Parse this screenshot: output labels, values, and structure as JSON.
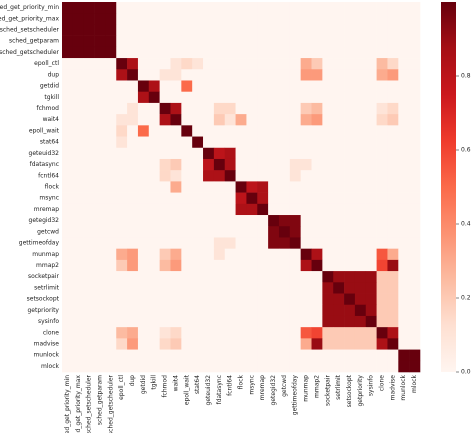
{
  "chart_data": {
    "type": "heatmap",
    "labels": [
      "sched_get_priority_min",
      "sched_get_priority_max",
      "sched_setscheduler",
      "sched_getparam",
      "sched_getscheduler",
      "epoll_ctl",
      "dup",
      "getdid",
      "tgkill",
      "fchmod",
      "wait4",
      "epoll_wait",
      "stat64",
      "geteuid32",
      "fdatasync",
      "fcntl64",
      "flock",
      "msync",
      "mremap",
      "getegid32",
      "getcwd",
      "gettimeofday",
      "munmap",
      "mmap2",
      "socketpair",
      "setrlimit",
      "setsockopt",
      "getpriority",
      "sysinfo",
      "clone",
      "madvise",
      "munlock",
      "mlock"
    ],
    "values": [
      [
        1,
        1,
        1,
        1,
        1,
        0,
        0,
        0,
        0,
        0,
        0,
        0,
        0,
        0,
        0,
        0,
        0,
        0,
        0,
        0,
        0,
        0,
        0,
        0,
        0,
        0,
        0,
        0,
        0,
        0,
        0,
        0,
        0
      ],
      [
        1,
        1,
        1,
        1,
        1,
        0,
        0,
        0,
        0,
        0,
        0,
        0,
        0,
        0,
        0,
        0,
        0,
        0,
        0,
        0,
        0,
        0,
        0,
        0,
        0,
        0,
        0,
        0,
        0,
        0,
        0,
        0,
        0
      ],
      [
        1,
        1,
        1,
        1,
        1,
        0,
        0,
        0,
        0,
        0,
        0,
        0,
        0,
        0,
        0,
        0,
        0,
        0,
        0,
        0,
        0,
        0,
        0,
        0,
        0,
        0,
        0,
        0,
        0,
        0,
        0,
        0,
        0
      ],
      [
        1,
        1,
        1,
        1,
        1,
        0,
        0,
        0,
        0,
        0,
        0,
        0,
        0,
        0,
        0,
        0,
        0,
        0,
        0,
        0,
        0,
        0,
        0,
        0,
        0,
        0,
        0,
        0,
        0,
        0,
        0,
        0,
        0
      ],
      [
        1,
        1,
        1,
        1,
        1,
        0,
        0,
        0,
        0,
        0,
        0,
        0,
        0,
        0,
        0,
        0,
        0,
        0,
        0,
        0,
        0,
        0,
        0,
        0,
        0,
        0,
        0,
        0,
        0,
        0,
        0,
        0,
        0
      ],
      [
        0,
        0,
        0,
        0,
        0,
        1,
        0.85,
        0,
        0,
        0,
        0.1,
        0.15,
        0.1,
        0,
        0,
        0,
        0,
        0,
        0,
        0,
        0,
        0,
        0.3,
        0.2,
        0,
        0,
        0,
        0,
        0,
        0.25,
        0.15,
        0,
        0
      ],
      [
        0,
        0,
        0,
        0,
        0,
        0.85,
        1,
        0,
        0,
        0.1,
        0.1,
        0,
        0,
        0,
        0,
        0,
        0,
        0,
        0,
        0,
        0,
        0,
        0.35,
        0.35,
        0,
        0,
        0,
        0,
        0,
        0.3,
        0.35,
        0,
        0
      ],
      [
        0,
        0,
        0,
        0,
        0,
        0,
        0,
        1,
        0.85,
        0,
        0,
        0.5,
        0,
        0,
        0,
        0,
        0,
        0,
        0,
        0,
        0,
        0,
        0,
        0,
        0,
        0,
        0,
        0,
        0,
        0,
        0,
        0,
        0
      ],
      [
        0,
        0,
        0,
        0,
        0,
        0,
        0,
        0.85,
        1,
        0,
        0,
        0,
        0,
        0,
        0,
        0,
        0,
        0,
        0,
        0,
        0,
        0,
        0,
        0,
        0,
        0,
        0,
        0,
        0,
        0,
        0,
        0,
        0
      ],
      [
        0,
        0,
        0,
        0,
        0,
        0,
        0.1,
        0,
        0,
        1,
        0.85,
        0,
        0,
        0,
        0.15,
        0.15,
        0,
        0,
        0,
        0,
        0,
        0,
        0.2,
        0.25,
        0,
        0,
        0,
        0,
        0,
        0.1,
        0.15,
        0,
        0
      ],
      [
        0,
        0,
        0,
        0,
        0,
        0.1,
        0.1,
        0,
        0,
        0.85,
        1,
        0,
        0,
        0,
        0.2,
        0.1,
        0.3,
        0,
        0,
        0,
        0,
        0,
        0.3,
        0.35,
        0,
        0,
        0,
        0,
        0,
        0.15,
        0.2,
        0,
        0
      ],
      [
        0,
        0,
        0,
        0,
        0,
        0.15,
        0,
        0.5,
        0,
        0,
        0,
        1,
        0,
        0,
        0,
        0,
        0,
        0,
        0,
        0,
        0,
        0,
        0,
        0,
        0,
        0,
        0,
        0,
        0,
        0,
        0,
        0,
        0
      ],
      [
        0,
        0,
        0,
        0,
        0,
        0.1,
        0,
        0,
        0,
        0,
        0,
        0,
        1,
        0,
        0,
        0,
        0,
        0,
        0,
        0,
        0,
        0,
        0,
        0,
        0,
        0,
        0,
        0,
        0,
        0,
        0,
        0,
        0
      ],
      [
        0,
        0,
        0,
        0,
        0,
        0,
        0,
        0,
        0,
        0,
        0,
        0,
        0,
        1,
        0.8,
        0.85,
        0,
        0,
        0,
        0,
        0,
        0,
        0,
        0,
        0,
        0,
        0,
        0,
        0,
        0,
        0,
        0,
        0
      ],
      [
        0,
        0,
        0,
        0,
        0,
        0,
        0,
        0,
        0,
        0.15,
        0.2,
        0,
        0,
        0.8,
        1,
        0.85,
        0,
        0,
        0,
        0,
        0,
        0.1,
        0.1,
        0,
        0,
        0,
        0,
        0,
        0,
        0,
        0,
        0,
        0
      ],
      [
        0,
        0,
        0,
        0,
        0,
        0,
        0,
        0,
        0,
        0.15,
        0.1,
        0,
        0,
        0.85,
        0.85,
        1,
        0,
        0,
        0,
        0,
        0,
        0.1,
        0,
        0,
        0,
        0,
        0,
        0,
        0,
        0,
        0,
        0,
        0
      ],
      [
        0,
        0,
        0,
        0,
        0,
        0,
        0,
        0,
        0,
        0,
        0.3,
        0,
        0,
        0,
        0,
        0,
        1,
        0.8,
        0.85,
        0,
        0,
        0,
        0,
        0,
        0,
        0,
        0,
        0,
        0,
        0,
        0,
        0,
        0
      ],
      [
        0,
        0,
        0,
        0,
        0,
        0,
        0,
        0,
        0,
        0,
        0,
        0,
        0,
        0,
        0,
        0,
        0.8,
        1,
        0.85,
        0,
        0,
        0,
        0,
        0,
        0,
        0,
        0,
        0,
        0,
        0,
        0,
        0,
        0
      ],
      [
        0,
        0,
        0,
        0,
        0,
        0,
        0,
        0,
        0,
        0,
        0,
        0,
        0,
        0,
        0,
        0,
        0.85,
        0.85,
        1,
        0,
        0,
        0,
        0,
        0,
        0,
        0,
        0,
        0,
        0,
        0,
        0,
        0,
        0
      ],
      [
        0,
        0,
        0,
        0,
        0,
        0,
        0,
        0,
        0,
        0,
        0,
        0,
        0,
        0,
        0,
        0,
        0,
        0,
        0,
        1,
        0.95,
        0.95,
        0,
        0,
        0,
        0,
        0,
        0,
        0,
        0,
        0,
        0,
        0
      ],
      [
        0,
        0,
        0,
        0,
        0,
        0,
        0,
        0,
        0,
        0,
        0,
        0,
        0,
        0,
        0,
        0,
        0,
        0,
        0,
        0.95,
        1,
        0.95,
        0,
        0,
        0,
        0,
        0,
        0,
        0,
        0,
        0,
        0,
        0
      ],
      [
        0,
        0,
        0,
        0,
        0,
        0,
        0,
        0,
        0,
        0,
        0,
        0,
        0,
        0,
        0.1,
        0.1,
        0,
        0,
        0,
        0.95,
        0.95,
        1,
        0,
        0,
        0,
        0,
        0,
        0,
        0,
        0,
        0,
        0,
        0
      ],
      [
        0,
        0,
        0,
        0,
        0,
        0.3,
        0.35,
        0,
        0,
        0.2,
        0.3,
        0,
        0,
        0,
        0.1,
        0,
        0,
        0,
        0,
        0,
        0,
        0,
        1,
        0.85,
        0,
        0,
        0,
        0,
        0,
        0.55,
        0.3,
        0,
        0
      ],
      [
        0,
        0,
        0,
        0,
        0,
        0.2,
        0.35,
        0,
        0,
        0.25,
        0.35,
        0,
        0,
        0,
        0,
        0,
        0,
        0,
        0,
        0,
        0,
        0,
        0.85,
        1,
        0,
        0,
        0,
        0,
        0,
        0.6,
        0.9,
        0,
        0
      ],
      [
        0,
        0,
        0,
        0,
        0,
        0,
        0,
        0,
        0,
        0,
        0,
        0,
        0,
        0,
        0,
        0,
        0,
        0,
        0,
        0,
        0,
        0,
        0,
        0,
        1,
        0.9,
        0.9,
        0.9,
        0.9,
        0.2,
        0.2,
        0,
        0
      ],
      [
        0,
        0,
        0,
        0,
        0,
        0,
        0,
        0,
        0,
        0,
        0,
        0,
        0,
        0,
        0,
        0,
        0,
        0,
        0,
        0,
        0,
        0,
        0,
        0,
        0.9,
        1,
        0.9,
        0.9,
        0.9,
        0.2,
        0.2,
        0,
        0
      ],
      [
        0,
        0,
        0,
        0,
        0,
        0,
        0,
        0,
        0,
        0,
        0,
        0,
        0,
        0,
        0,
        0,
        0,
        0,
        0,
        0,
        0,
        0,
        0,
        0,
        0.9,
        0.9,
        1,
        0.9,
        0.9,
        0.2,
        0.2,
        0,
        0
      ],
      [
        0,
        0,
        0,
        0,
        0,
        0,
        0,
        0,
        0,
        0,
        0,
        0,
        0,
        0,
        0,
        0,
        0,
        0,
        0,
        0,
        0,
        0,
        0,
        0,
        0.9,
        0.9,
        0.9,
        1,
        0.9,
        0.2,
        0.2,
        0,
        0
      ],
      [
        0,
        0,
        0,
        0,
        0,
        0,
        0,
        0,
        0,
        0,
        0,
        0,
        0,
        0,
        0,
        0,
        0,
        0,
        0,
        0,
        0,
        0,
        0,
        0,
        0.9,
        0.9,
        0.9,
        0.9,
        1,
        0.2,
        0.2,
        0,
        0
      ],
      [
        0,
        0,
        0,
        0,
        0,
        0.25,
        0.3,
        0,
        0,
        0.1,
        0.15,
        0,
        0,
        0,
        0,
        0,
        0,
        0,
        0,
        0,
        0,
        0,
        0.55,
        0.6,
        0.2,
        0.2,
        0.2,
        0.2,
        0.2,
        1,
        0.85,
        0,
        0
      ],
      [
        0,
        0,
        0,
        0,
        0,
        0.15,
        0.35,
        0,
        0,
        0.15,
        0.2,
        0,
        0,
        0,
        0,
        0,
        0,
        0,
        0,
        0,
        0,
        0,
        0.3,
        0.9,
        0.2,
        0.2,
        0.2,
        0.2,
        0.2,
        0.85,
        1,
        0,
        0
      ],
      [
        0,
        0,
        0,
        0,
        0,
        0,
        0,
        0,
        0,
        0,
        0,
        0,
        0,
        0,
        0,
        0,
        0,
        0,
        0,
        0,
        0,
        0,
        0,
        0,
        0,
        0,
        0,
        0,
        0,
        0,
        0,
        1,
        1
      ],
      [
        0,
        0,
        0,
        0,
        0,
        0,
        0,
        0,
        0,
        0,
        0,
        0,
        0,
        0,
        0,
        0,
        0,
        0,
        0,
        0,
        0,
        0,
        0,
        0,
        0,
        0,
        0,
        0,
        0,
        0,
        0,
        1,
        1
      ]
    ],
    "zlim": [
      0,
      1
    ],
    "colorbar_ticks": [
      {
        "value": 0,
        "label": "0.0"
      },
      {
        "value": 0.2,
        "label": "0.2"
      },
      {
        "value": 0.4,
        "label": "0.4"
      },
      {
        "value": 0.6,
        "label": "0.6"
      },
      {
        "value": 0.8,
        "label": "0.8"
      }
    ],
    "colormap": [
      "#fff5f0",
      "#fee0d2",
      "#fcbba1",
      "#fc9272",
      "#fb6a4a",
      "#ef3b2c",
      "#cb181d",
      "#a50f15",
      "#67000d"
    ]
  }
}
